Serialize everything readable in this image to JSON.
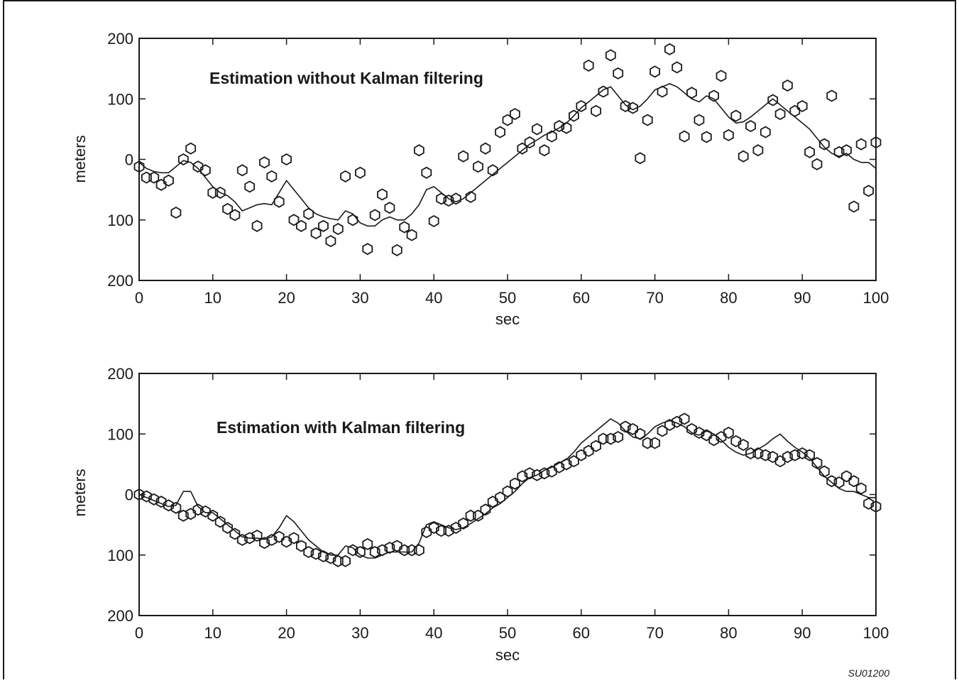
{
  "figure_code": "SU01200",
  "chart_data": [
    {
      "type": "scatter",
      "title": "Estimation without Kalman filtering",
      "xlabel": "sec",
      "ylabel": "meters",
      "xlim": [
        0,
        100
      ],
      "ylim": [
        -200,
        200
      ],
      "x_ticks": [
        "0",
        "10",
        "20",
        "30",
        "40",
        "50",
        "60",
        "70",
        "80",
        "90",
        "100"
      ],
      "y_ticks": [
        "200",
        "100",
        "0",
        "100",
        "200"
      ],
      "grid": false,
      "line_series": {
        "x": [
          0,
          1,
          2,
          3,
          4,
          5,
          6,
          7,
          8,
          9,
          10,
          11,
          12,
          13,
          14,
          15,
          16,
          17,
          18,
          19,
          20,
          21,
          22,
          23,
          24,
          25,
          26,
          27,
          28,
          29,
          30,
          31,
          32,
          33,
          34,
          35,
          36,
          37,
          38,
          39,
          40,
          41,
          42,
          43,
          44,
          45,
          46,
          47,
          48,
          49,
          50,
          51,
          52,
          53,
          54,
          55,
          56,
          57,
          58,
          59,
          60,
          61,
          62,
          63,
          64,
          65,
          66,
          67,
          68,
          69,
          70,
          71,
          72,
          73,
          74,
          75,
          76,
          77,
          78,
          79,
          80,
          81,
          82,
          83,
          84,
          85,
          86,
          87,
          88,
          89,
          90,
          91,
          92,
          93,
          94,
          95,
          96,
          97,
          98,
          99,
          100
        ],
        "y": [
          -5,
          -15,
          -20,
          -22,
          -22,
          -12,
          -2,
          -5,
          -15,
          -30,
          -45,
          -55,
          -60,
          -70,
          -85,
          -80,
          -75,
          -73,
          -75,
          -55,
          -35,
          -50,
          -65,
          -80,
          -90,
          -95,
          -98,
          -100,
          -85,
          -90,
          -105,
          -110,
          -110,
          -100,
          -95,
          -100,
          -100,
          -90,
          -75,
          -50,
          -45,
          -55,
          -65,
          -70,
          -65,
          -55,
          -45,
          -35,
          -25,
          -15,
          -5,
          5,
          15,
          25,
          32,
          40,
          45,
          52,
          60,
          72,
          85,
          95,
          105,
          115,
          120,
          105,
          90,
          82,
          88,
          100,
          115,
          120,
          125,
          120,
          110,
          100,
          95,
          105,
          100,
          85,
          70,
          60,
          62,
          70,
          80,
          90,
          100,
          90,
          80,
          70,
          60,
          50,
          35,
          20,
          10,
          5,
          10,
          0,
          -5,
          -5,
          -15
        ]
      },
      "points": {
        "x": [
          0,
          1,
          2,
          3,
          4,
          5,
          6,
          7,
          8,
          9,
          10,
          11,
          12,
          13,
          14,
          15,
          16,
          17,
          18,
          19,
          20,
          21,
          22,
          23,
          24,
          25,
          26,
          27,
          28,
          29,
          30,
          31,
          32,
          33,
          34,
          35,
          36,
          37,
          38,
          39,
          40,
          41,
          42,
          43,
          44,
          45,
          46,
          47,
          48,
          49,
          50,
          51,
          52,
          53,
          54,
          55,
          56,
          57,
          58,
          59,
          60,
          61,
          62,
          63,
          64,
          65,
          66,
          67,
          68,
          69,
          70,
          71,
          72,
          73,
          74,
          75,
          76,
          77,
          78,
          79,
          80,
          81,
          82,
          83,
          84,
          85,
          86,
          87,
          88,
          89,
          90,
          91,
          92,
          93,
          94,
          95,
          96,
          97,
          98,
          99,
          100
        ],
        "y": [
          -12,
          -30,
          -30,
          -42,
          -35,
          -88,
          0,
          18,
          -12,
          -18,
          -55,
          -55,
          -82,
          -92,
          -18,
          -45,
          -110,
          -5,
          -28,
          -70,
          0,
          -100,
          -110,
          -90,
          -122,
          -110,
          -135,
          -115,
          -28,
          -100,
          -22,
          -148,
          -92,
          -58,
          -80,
          -150,
          -112,
          -125,
          15,
          -22,
          -102,
          -65,
          -68,
          -65,
          5,
          -62,
          -12,
          18,
          -18,
          45,
          65,
          75,
          18,
          28,
          50,
          15,
          38,
          55,
          52,
          72,
          88,
          155,
          80,
          112,
          172,
          142,
          88,
          85,
          2,
          65,
          145,
          112,
          182,
          152,
          38,
          110,
          65,
          37,
          105,
          138,
          40,
          72,
          5,
          55,
          15,
          45,
          98,
          75,
          122,
          80,
          88,
          12,
          -8,
          25,
          105,
          12,
          15,
          -78,
          25,
          -52,
          28
        ]
      }
    },
    {
      "type": "scatter",
      "title": "Estimation with Kalman filtering",
      "xlabel": "sec",
      "ylabel": "meters",
      "xlim": [
        0,
        100
      ],
      "ylim": [
        -200,
        200
      ],
      "x_ticks": [
        "0",
        "10",
        "20",
        "30",
        "40",
        "50",
        "60",
        "70",
        "80",
        "90",
        "100"
      ],
      "y_ticks": [
        "200",
        "100",
        "0",
        "100",
        "200"
      ],
      "grid": false,
      "line_series": {
        "x": [
          0,
          1,
          2,
          3,
          4,
          5,
          6,
          7,
          8,
          9,
          10,
          11,
          12,
          13,
          14,
          15,
          16,
          17,
          18,
          19,
          20,
          21,
          22,
          23,
          24,
          25,
          26,
          27,
          28,
          29,
          30,
          31,
          32,
          33,
          34,
          35,
          36,
          37,
          38,
          39,
          40,
          41,
          42,
          43,
          44,
          45,
          46,
          47,
          48,
          49,
          50,
          51,
          52,
          53,
          54,
          55,
          56,
          57,
          58,
          59,
          60,
          61,
          62,
          63,
          64,
          65,
          66,
          67,
          68,
          69,
          70,
          71,
          72,
          73,
          74,
          75,
          76,
          77,
          78,
          79,
          80,
          81,
          82,
          83,
          84,
          85,
          86,
          87,
          88,
          89,
          90,
          91,
          92,
          93,
          94,
          95,
          96,
          97,
          98,
          99,
          100
        ],
        "y": [
          0,
          -5,
          -10,
          -15,
          -20,
          -18,
          5,
          5,
          -20,
          -30,
          -30,
          -40,
          -50,
          -60,
          -70,
          -72,
          -72,
          -74,
          -70,
          -55,
          -35,
          -45,
          -60,
          -75,
          -85,
          -95,
          -100,
          -100,
          -85,
          -88,
          -100,
          -105,
          -105,
          -100,
          -95,
          -95,
          -95,
          -95,
          -80,
          -50,
          -45,
          -50,
          -55,
          -58,
          -55,
          -48,
          -40,
          -32,
          -22,
          -15,
          -5,
          5,
          18,
          28,
          32,
          40,
          45,
          52,
          58,
          70,
          85,
          95,
          105,
          115,
          125,
          118,
          105,
          95,
          92,
          100,
          112,
          118,
          122,
          118,
          112,
          102,
          98,
          105,
          100,
          90,
          78,
          70,
          65,
          68,
          75,
          82,
          92,
          100,
          88,
          78,
          70,
          60,
          45,
          30,
          20,
          10,
          5,
          5,
          0,
          -5,
          -5
        ]
      },
      "points": {
        "x": [
          0,
          1,
          2,
          3,
          4,
          5,
          6,
          7,
          8,
          9,
          10,
          11,
          12,
          13,
          14,
          15,
          16,
          17,
          18,
          19,
          20,
          21,
          22,
          23,
          24,
          25,
          26,
          27,
          28,
          29,
          30,
          31,
          32,
          33,
          34,
          35,
          36,
          37,
          38,
          39,
          40,
          41,
          42,
          43,
          44,
          45,
          46,
          47,
          48,
          49,
          50,
          51,
          52,
          53,
          54,
          55,
          56,
          57,
          58,
          59,
          60,
          61,
          62,
          63,
          64,
          65,
          66,
          67,
          68,
          69,
          70,
          71,
          72,
          73,
          74,
          75,
          76,
          77,
          78,
          79,
          80,
          81,
          82,
          83,
          84,
          85,
          86,
          87,
          88,
          89,
          90,
          91,
          92,
          93,
          94,
          95,
          96,
          97,
          98,
          99,
          100
        ],
        "y": [
          0,
          -3,
          -8,
          -12,
          -18,
          -22,
          -35,
          -32,
          -25,
          -28,
          -35,
          -45,
          -55,
          -65,
          -75,
          -72,
          -68,
          -80,
          -75,
          -70,
          -78,
          -72,
          -85,
          -95,
          -98,
          -102,
          -105,
          -110,
          -110,
          -92,
          -95,
          -82,
          -95,
          -92,
          -88,
          -85,
          -92,
          -92,
          -92,
          -62,
          -55,
          -60,
          -60,
          -55,
          -48,
          -35,
          -35,
          -25,
          -12,
          -5,
          5,
          18,
          30,
          35,
          32,
          35,
          38,
          45,
          50,
          55,
          65,
          72,
          80,
          92,
          92,
          95,
          112,
          108,
          100,
          85,
          85,
          105,
          115,
          120,
          125,
          108,
          102,
          98,
          90,
          95,
          102,
          88,
          82,
          68,
          68,
          65,
          62,
          55,
          62,
          65,
          68,
          65,
          52,
          38,
          22,
          20,
          30,
          22,
          10,
          -15,
          -20
        ]
      }
    }
  ]
}
